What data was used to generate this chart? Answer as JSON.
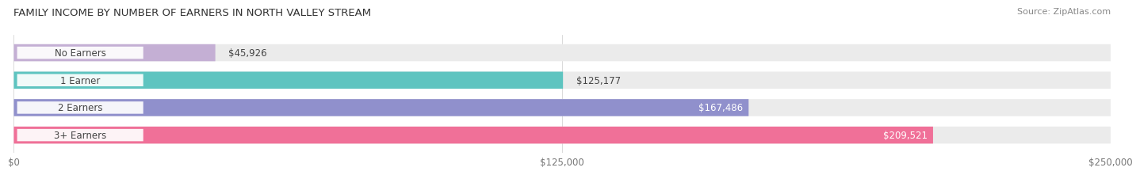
{
  "title": "FAMILY INCOME BY NUMBER OF EARNERS IN NORTH VALLEY STREAM",
  "source": "Source: ZipAtlas.com",
  "categories": [
    "No Earners",
    "1 Earner",
    "2 Earners",
    "3+ Earners"
  ],
  "values": [
    45926,
    125177,
    167486,
    209521
  ],
  "labels": [
    "$45,926",
    "$125,177",
    "$167,486",
    "$209,521"
  ],
  "label_inside": [
    false,
    false,
    true,
    true
  ],
  "bar_colors": [
    "#c4afd4",
    "#5ec4c0",
    "#9090cc",
    "#f07098"
  ],
  "max_value": 250000,
  "xticks": [
    0,
    125000,
    250000
  ],
  "xtick_labels": [
    "$0",
    "$125,000",
    "$250,000"
  ],
  "title_fontsize": 9.5,
  "source_fontsize": 8,
  "label_fontsize": 8.5,
  "cat_fontsize": 8.5,
  "bar_height": 0.62,
  "background_color": "#ffffff",
  "bar_bg_color": "#ebebeb",
  "gap_color": "#ffffff"
}
